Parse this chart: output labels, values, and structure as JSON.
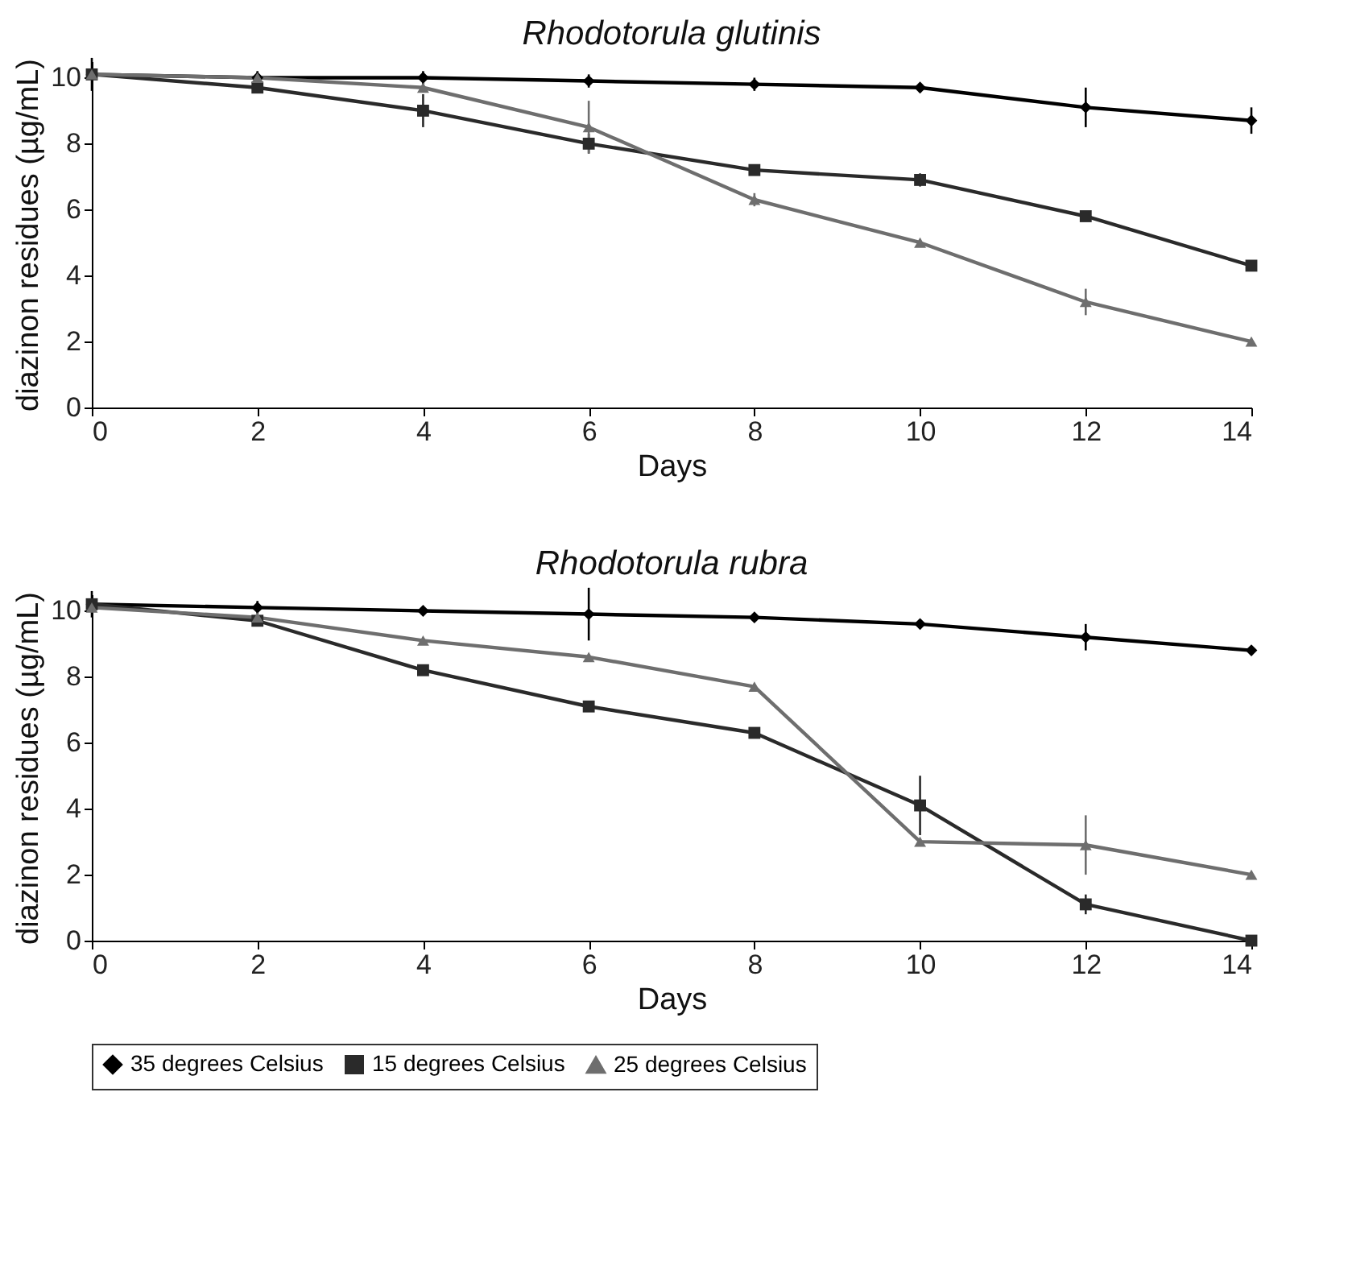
{
  "chart_data": [
    {
      "type": "line",
      "title": "Rhodotorula glutinis",
      "xlabel": "Days",
      "ylabel": "diazinon residues (µg/mL)",
      "x": [
        0,
        2,
        4,
        6,
        8,
        10,
        12,
        14
      ],
      "xlim": [
        0,
        14
      ],
      "xticks": [
        0,
        2,
        4,
        6,
        8,
        10,
        12,
        14
      ],
      "ylim": [
        0,
        10.5
      ],
      "yticks": [
        0,
        2,
        4,
        6,
        8,
        10
      ],
      "grid": false,
      "legend": "bottom",
      "series": [
        {
          "name": "35 degrees Celsius",
          "color": "#000000",
          "marker": "diamond",
          "values": [
            10.1,
            10.0,
            10.0,
            9.9,
            9.8,
            9.7,
            9.1,
            8.7
          ],
          "errors": [
            0.5,
            0.2,
            0.2,
            0.2,
            0.2,
            null,
            0.6,
            0.4
          ]
        },
        {
          "name": "15 degrees Celsius",
          "color": "#2a2a2a",
          "marker": "square",
          "values": [
            10.1,
            9.7,
            9.0,
            8.0,
            7.2,
            6.9,
            5.8,
            4.3
          ],
          "errors": [
            null,
            null,
            0.5,
            0.3,
            null,
            0.2,
            null,
            null
          ]
        },
        {
          "name": "25 degrees Celsius",
          "color": "#6e6e6e",
          "marker": "triangle",
          "values": [
            10.1,
            10.0,
            9.7,
            8.5,
            6.3,
            5.0,
            3.2,
            2.0
          ],
          "errors": [
            null,
            null,
            null,
            0.8,
            0.2,
            null,
            0.4,
            null
          ]
        }
      ]
    },
    {
      "type": "line",
      "title": "Rhodotorula rubra",
      "xlabel": "Days",
      "ylabel": "diazinon residues (µg/mL)",
      "x": [
        0,
        2,
        4,
        6,
        8,
        10,
        12,
        14
      ],
      "xlim": [
        0,
        14
      ],
      "xticks": [
        0,
        2,
        4,
        6,
        8,
        10,
        12,
        14
      ],
      "ylim": [
        0,
        10.5
      ],
      "yticks": [
        0,
        2,
        4,
        6,
        8,
        10
      ],
      "grid": false,
      "legend": "bottom",
      "series": [
        {
          "name": "35 degrees Celsius",
          "color": "#000000",
          "marker": "diamond",
          "values": [
            10.2,
            10.1,
            10.0,
            9.9,
            9.8,
            9.6,
            9.2,
            8.8
          ],
          "errors": [
            0.4,
            0.2,
            null,
            0.8,
            null,
            null,
            0.4,
            null
          ]
        },
        {
          "name": "15 degrees Celsius",
          "color": "#2a2a2a",
          "marker": "square",
          "values": [
            10.2,
            9.7,
            8.2,
            7.1,
            6.3,
            4.1,
            1.1,
            0
          ],
          "errors": [
            null,
            null,
            null,
            null,
            null,
            0.9,
            0.3,
            null
          ]
        },
        {
          "name": "25 degrees Celsius",
          "color": "#6e6e6e",
          "marker": "triangle",
          "values": [
            10.1,
            9.8,
            9.1,
            8.6,
            7.7,
            3.0,
            2.9,
            2.0
          ],
          "errors": [
            null,
            null,
            null,
            null,
            null,
            null,
            0.9,
            null
          ]
        }
      ]
    }
  ]
}
